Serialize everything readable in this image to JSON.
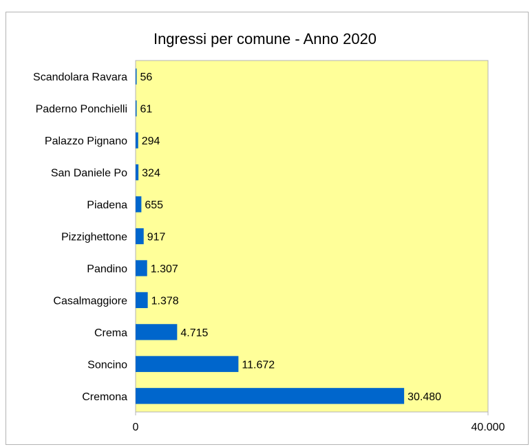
{
  "chart_data": {
    "type": "bar",
    "orientation": "horizontal",
    "title": "Ingressi per comune - Anno 2020",
    "categories": [
      "Scandolara Ravara",
      "Paderno Ponchielli",
      "Palazzo Pignano",
      "San Daniele Po",
      "Piadena",
      "Pizzighettone",
      "Pandino",
      "Casalmaggiore",
      "Crema",
      "Soncino",
      "Cremona"
    ],
    "values": [
      56,
      61,
      294,
      324,
      655,
      917,
      1307,
      1378,
      4715,
      11672,
      30480
    ],
    "value_labels": [
      "56",
      "61",
      "294",
      "324",
      "655",
      "917",
      "1.307",
      "1.378",
      "4.715",
      "11.672",
      "30.480"
    ],
    "xlim": [
      0,
      40000
    ],
    "x_ticks": [
      0,
      40000
    ],
    "x_tick_labels": [
      "0",
      "40.000"
    ],
    "xlabel": "",
    "ylabel": "",
    "grid": false,
    "legend": "none",
    "colors": {
      "bar": "#0066cc",
      "plot_background": "#ffff99",
      "plot_border": "#b3b3b3"
    }
  }
}
